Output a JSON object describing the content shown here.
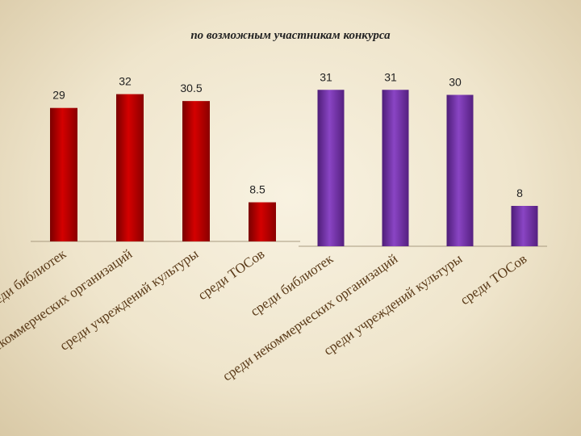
{
  "chart_data": {
    "type": "bar",
    "title": "по возможным участникам конкурса",
    "groups": [
      {
        "color": "#b00000",
        "categories": [
          "среди библиотек",
          "среди некоммерческих организаций",
          "среди учреждений культуры",
          "среди ТОСов"
        ],
        "values": [
          29,
          32,
          30.5,
          8.5
        ],
        "value_labels": [
          "29",
          "32",
          "30.5",
          "8.5"
        ]
      },
      {
        "color": "#7030a0",
        "categories": [
          "среди библиотек",
          "среди некоммерческих организаций",
          "среди учреждений культуры",
          "среди ТОСов"
        ],
        "values": [
          31,
          31,
          30,
          8
        ],
        "value_labels": [
          "31",
          "31",
          "30",
          "8"
        ]
      }
    ],
    "ylim": [
      0,
      35
    ],
    "grid": false,
    "legend": "none"
  }
}
